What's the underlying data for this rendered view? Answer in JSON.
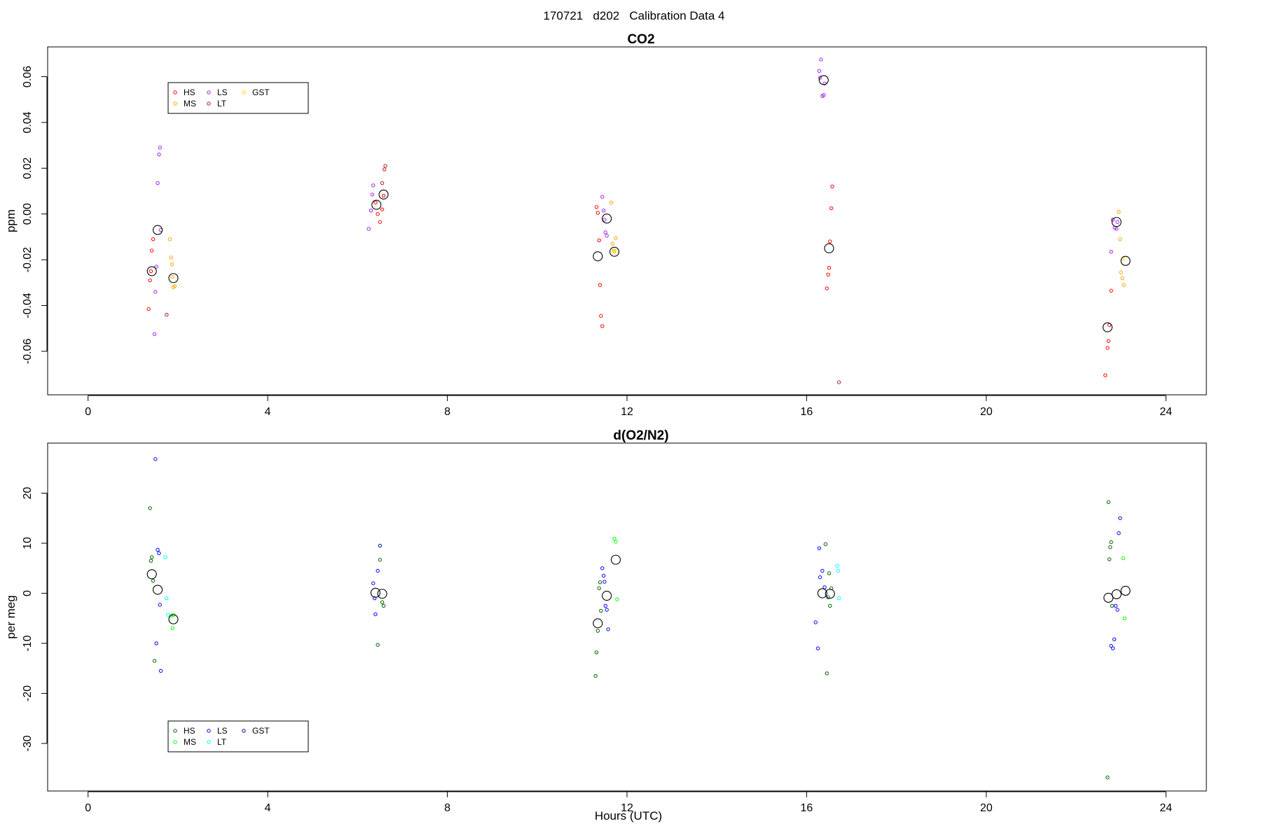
{
  "page_title": "170721   d202   Calibration Data 4",
  "chart_data": [
    {
      "type": "scatter",
      "title": "CO2",
      "ylabel": "ppm",
      "xlabel": "",
      "xlim": [
        -0.9,
        24.9
      ],
      "ylim": [
        -0.079,
        0.073
      ],
      "xticks": [
        0,
        4,
        8,
        12,
        16,
        20,
        24
      ],
      "xtick_labels": [
        "0",
        "4",
        "8",
        "12",
        "16",
        "20",
        "24"
      ],
      "yticks": [
        -0.06,
        -0.04,
        -0.02,
        0.0,
        0.02,
        0.04,
        0.06
      ],
      "ytick_labels": [
        "-0.06",
        "-0.04",
        "-0.02",
        "0.00",
        "0.02",
        "0.04",
        "0.06"
      ],
      "grid": false,
      "legend": {
        "placement": "top-left",
        "entries": [
          {
            "label": "HS",
            "color": "#ff0000"
          },
          {
            "label": "MS",
            "color": "#ffa500"
          },
          {
            "label": "LS",
            "color": "#a020f0"
          },
          {
            "label": "LT",
            "color": "#b22222"
          },
          {
            "label": "GST",
            "color": "#ffd700"
          }
        ]
      },
      "series": [
        {
          "name": "HS",
          "color": "#ff0000",
          "points": [
            [
              1.35,
              -0.0415
            ],
            [
              1.38,
              -0.029
            ],
            [
              1.4,
              -0.025
            ],
            [
              1.42,
              -0.016
            ],
            [
              1.45,
              -0.011
            ],
            [
              6.4,
              0.005
            ],
            [
              6.45,
              0.0
            ],
            [
              6.5,
              -0.0035
            ],
            [
              6.55,
              0.002
            ],
            [
              6.58,
              0.008
            ],
            [
              11.32,
              0.003
            ],
            [
              11.35,
              0.0005
            ],
            [
              11.38,
              -0.0115
            ],
            [
              11.4,
              -0.031
            ],
            [
              11.42,
              -0.0445
            ],
            [
              11.45,
              -0.049
            ],
            [
              16.45,
              -0.0325
            ],
            [
              16.48,
              -0.0265
            ],
            [
              16.5,
              -0.0235
            ],
            [
              16.52,
              -0.012
            ],
            [
              16.55,
              0.0025
            ],
            [
              16.57,
              0.012
            ],
            [
              22.65,
              -0.0705
            ],
            [
              22.7,
              -0.0585
            ],
            [
              22.72,
              -0.0555
            ],
            [
              22.74,
              -0.0485
            ],
            [
              22.78,
              -0.0335
            ]
          ]
        },
        {
          "name": "MS",
          "color": "#ffa500",
          "points": [
            [
              1.82,
              -0.011
            ],
            [
              1.85,
              -0.019
            ],
            [
              1.87,
              -0.022
            ],
            [
              1.88,
              -0.0275
            ],
            [
              1.9,
              -0.032
            ],
            [
              1.93,
              -0.0315
            ],
            [
              11.65,
              0.005
            ],
            [
              11.68,
              -0.013
            ],
            [
              11.72,
              -0.016
            ],
            [
              11.75,
              -0.0105
            ],
            [
              22.95,
              0.001
            ],
            [
              22.98,
              -0.011
            ],
            [
              23.0,
              -0.0255
            ],
            [
              23.03,
              -0.028
            ],
            [
              23.06,
              -0.031
            ]
          ]
        },
        {
          "name": "LS",
          "color": "#a020f0",
          "points": [
            [
              1.48,
              -0.0525
            ],
            [
              1.5,
              -0.034
            ],
            [
              1.52,
              -0.023
            ],
            [
              1.55,
              0.0135
            ],
            [
              1.58,
              0.026
            ],
            [
              1.6,
              0.029
            ],
            [
              1.62,
              -0.007
            ],
            [
              6.25,
              -0.0065
            ],
            [
              6.3,
              0.0015
            ],
            [
              6.33,
              0.0085
            ],
            [
              6.35,
              0.0125
            ],
            [
              11.45,
              0.0075
            ],
            [
              11.48,
              0.0015
            ],
            [
              11.5,
              -0.0025
            ],
            [
              11.52,
              -0.008
            ],
            [
              11.55,
              -0.0095
            ],
            [
              16.28,
              0.0625
            ],
            [
              16.3,
              0.0595
            ],
            [
              16.32,
              0.0675
            ],
            [
              16.35,
              0.0515
            ],
            [
              16.38,
              0.052
            ],
            [
              16.4,
              0.057
            ],
            [
              22.78,
              -0.0165
            ],
            [
              22.82,
              -0.0025
            ],
            [
              22.86,
              -0.006
            ],
            [
              22.9,
              -0.0065
            ],
            [
              22.92,
              -0.0035
            ]
          ]
        },
        {
          "name": "LT",
          "color": "#b22222",
          "points": [
            [
              1.75,
              -0.044
            ],
            [
              6.55,
              0.0135
            ],
            [
              6.6,
              0.0195
            ],
            [
              6.62,
              0.021
            ],
            [
              16.72,
              -0.0735
            ]
          ]
        },
        {
          "name": "GST",
          "color": "#ffd700",
          "points": [
            [
              11.7,
              -0.016
            ],
            [
              11.72,
              -0.0165
            ],
            [
              23.05,
              -0.0195
            ]
          ]
        },
        {
          "name": "",
          "color": "#000000",
          "mean": true,
          "points": [
            [
              1.42,
              -0.025
            ],
            [
              1.55,
              -0.007
            ],
            [
              1.9,
              -0.028
            ],
            [
              6.42,
              0.004
            ],
            [
              6.58,
              0.0085
            ],
            [
              11.35,
              -0.0185
            ],
            [
              11.55,
              -0.002
            ],
            [
              11.72,
              -0.0165
            ],
            [
              16.38,
              0.0585
            ],
            [
              16.5,
              -0.015
            ],
            [
              22.7,
              -0.0495
            ],
            [
              22.9,
              -0.0035
            ],
            [
              23.1,
              -0.0205
            ]
          ]
        }
      ]
    },
    {
      "type": "scatter",
      "title": "d(O2/N2)",
      "ylabel": "per meg",
      "xlabel": "Hours (UTC)",
      "xlim": [
        -0.9,
        24.9
      ],
      "ylim": [
        -39.5,
        30
      ],
      "xticks": [
        0,
        4,
        8,
        12,
        16,
        20,
        24
      ],
      "xtick_labels": [
        "0",
        "4",
        "8",
        "12",
        "16",
        "20",
        "24"
      ],
      "yticks": [
        -30,
        -20,
        -10,
        0,
        10,
        20
      ],
      "ytick_labels": [
        "-30",
        "-20",
        "-10",
        "0",
        "10",
        "20"
      ],
      "grid": false,
      "legend": {
        "placement": "bottom-left",
        "entries": [
          {
            "label": "HS",
            "color": "#006400"
          },
          {
            "label": "MS",
            "color": "#00ff00"
          },
          {
            "label": "LS",
            "color": "#0000ff"
          },
          {
            "label": "LT",
            "color": "#00ffff"
          },
          {
            "label": "GST",
            "color": "#00008b"
          }
        ]
      },
      "series": [
        {
          "name": "HS",
          "color": "#006400",
          "points": [
            [
              1.38,
              17.0
            ],
            [
              1.4,
              6.5
            ],
            [
              1.42,
              7.2
            ],
            [
              1.45,
              2.5
            ],
            [
              1.48,
              -13.5
            ],
            [
              6.45,
              -10.3
            ],
            [
              6.5,
              6.7
            ],
            [
              6.55,
              -1.8
            ],
            [
              6.58,
              -2.5
            ],
            [
              11.3,
              -16.5
            ],
            [
              11.32,
              -11.8
            ],
            [
              11.35,
              -7.5
            ],
            [
              11.38,
              1.0
            ],
            [
              11.4,
              2.2
            ],
            [
              11.42,
              -3.5
            ],
            [
              16.42,
              9.8
            ],
            [
              16.45,
              -16.0
            ],
            [
              16.48,
              -0.8
            ],
            [
              16.5,
              4.0
            ],
            [
              16.52,
              -2.5
            ],
            [
              16.55,
              1.0
            ],
            [
              22.7,
              -36.8
            ],
            [
              22.72,
              18.2
            ],
            [
              22.74,
              6.8
            ],
            [
              22.76,
              9.2
            ],
            [
              22.78,
              10.2
            ],
            [
              22.8,
              -2.5
            ]
          ]
        },
        {
          "name": "MS",
          "color": "#00ff00",
          "points": [
            [
              1.85,
              -4.5
            ],
            [
              1.88,
              -7.0
            ],
            [
              1.9,
              -4.3
            ],
            [
              11.72,
              10.9
            ],
            [
              11.75,
              10.3
            ],
            [
              11.78,
              -1.2
            ],
            [
              23.05,
              7.0
            ],
            [
              23.08,
              -5.0
            ]
          ]
        },
        {
          "name": "LS",
          "color": "#0000ff",
          "points": [
            [
              1.5,
              26.8
            ],
            [
              1.52,
              -10.0
            ],
            [
              1.55,
              8.7
            ],
            [
              1.58,
              8.0
            ],
            [
              1.6,
              -2.3
            ],
            [
              1.62,
              -15.5
            ],
            [
              6.35,
              2.0
            ],
            [
              6.38,
              -1.0
            ],
            [
              6.4,
              -4.2
            ],
            [
              6.45,
              4.5
            ],
            [
              11.45,
              5.0
            ],
            [
              11.48,
              3.5
            ],
            [
              11.5,
              2.3
            ],
            [
              11.52,
              -2.5
            ],
            [
              11.55,
              -3.3
            ],
            [
              11.58,
              -7.2
            ],
            [
              16.2,
              -5.8
            ],
            [
              16.25,
              -11.0
            ],
            [
              16.28,
              9.0
            ],
            [
              16.3,
              3.2
            ],
            [
              16.35,
              4.5
            ],
            [
              16.4,
              1.2
            ],
            [
              22.78,
              -10.5
            ],
            [
              22.82,
              -11.0
            ],
            [
              22.85,
              -9.2
            ],
            [
              22.88,
              -2.5
            ],
            [
              22.92,
              -3.3
            ],
            [
              22.95,
              12.0
            ],
            [
              22.98,
              15.0
            ]
          ]
        },
        {
          "name": "LT",
          "color": "#00ffff",
          "points": [
            [
              1.72,
              7.2
            ],
            [
              1.75,
              -1.0
            ],
            [
              1.78,
              -4.3
            ],
            [
              16.68,
              5.5
            ],
            [
              16.7,
              4.5
            ],
            [
              16.72,
              -1.0
            ]
          ]
        },
        {
          "name": "GST",
          "color": "#00008b",
          "points": [
            [
              6.5,
              9.5
            ]
          ]
        },
        {
          "name": "",
          "color": "#000000",
          "mean": true,
          "points": [
            [
              1.42,
              3.8
            ],
            [
              1.55,
              0.7
            ],
            [
              1.9,
              -5.2
            ],
            [
              6.4,
              0.1
            ],
            [
              6.55,
              -0.1
            ],
            [
              11.35,
              -6.0
            ],
            [
              11.55,
              -0.5
            ],
            [
              11.75,
              6.7
            ],
            [
              16.35,
              0.0
            ],
            [
              16.52,
              -0.1
            ],
            [
              22.72,
              -0.9
            ],
            [
              22.9,
              -0.2
            ],
            [
              23.1,
              0.5
            ]
          ]
        }
      ]
    }
  ]
}
